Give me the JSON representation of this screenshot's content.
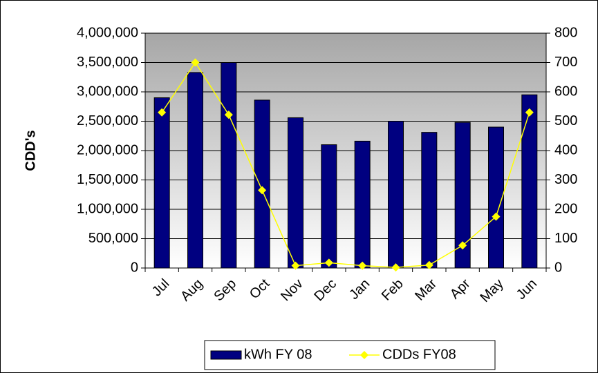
{
  "chart_data": {
    "type": "bar-line",
    "y_label": "CDD's",
    "categories": [
      "Jul",
      "Aug",
      "Sep",
      "Oct",
      "Nov",
      "Dec",
      "Jan",
      "Feb",
      "Mar",
      "Apr",
      "May",
      "Jun"
    ],
    "series": [
      {
        "name": "kWh FY 08",
        "color": "#000080",
        "type": "bar",
        "values": [
          2900000,
          3330000,
          3500000,
          2860000,
          2560000,
          2100000,
          2160000,
          2500000,
          2310000,
          2480000,
          2400000,
          2950000
        ]
      },
      {
        "name": "CDDs FY08",
        "color": "#ffff00",
        "type": "line",
        "axis": "y2",
        "values": [
          530,
          700,
          522,
          265,
          8,
          18,
          8,
          2,
          10,
          77,
          175,
          530
        ]
      }
    ],
    "ylim": [
      0,
      4000000
    ],
    "yticks": [
      {
        "value": 0,
        "label": "0"
      },
      {
        "value": 500000,
        "label": "500,000"
      },
      {
        "value": 1000000,
        "label": "1,000,000"
      },
      {
        "value": 1500000,
        "label": "1,500,000"
      },
      {
        "value": 2000000,
        "label": "2,000,000"
      },
      {
        "value": 2500000,
        "label": "2,500,000"
      },
      {
        "value": 3000000,
        "label": "3,000,000"
      },
      {
        "value": 3500000,
        "label": "3,500,000"
      },
      {
        "value": 4000000,
        "label": "4,000,000"
      }
    ],
    "y2lim": [
      0,
      800
    ],
    "y2ticks": [
      0,
      100,
      200,
      300,
      400,
      500,
      600,
      700,
      800
    ],
    "grid": true
  }
}
